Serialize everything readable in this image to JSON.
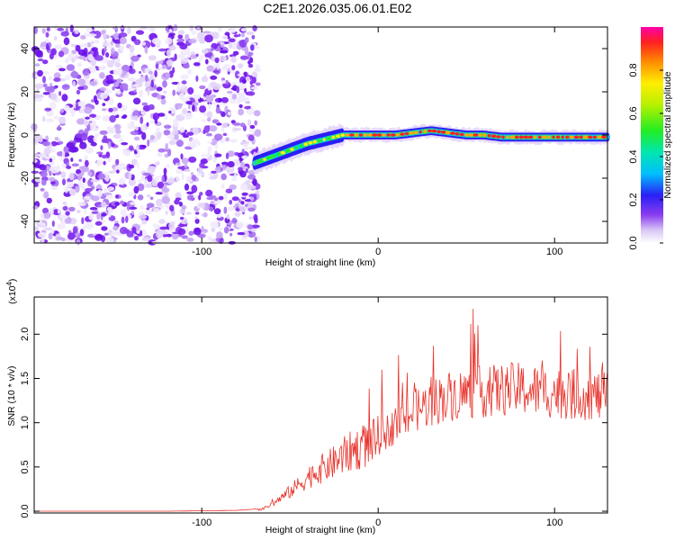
{
  "title": "C2E1.2026.035.06.01.E02",
  "chart_data": [
    {
      "type": "heatmap",
      "xlabel": "Height of straight line (km)",
      "ylabel": "Frequency (Hz)",
      "xlim": [
        -195,
        130
      ],
      "ylim": [
        -50,
        50
      ],
      "xticks": [
        -100,
        0,
        100
      ],
      "yticks": [
        -40,
        -20,
        0,
        20,
        40
      ],
      "noise_region_x": [
        -195,
        -68
      ],
      "ridge": {
        "x": [
          -70,
          -60,
          -50,
          -40,
          -30,
          -20,
          -10,
          0,
          10,
          20,
          30,
          40,
          50,
          60,
          70,
          80,
          90,
          100,
          110,
          120,
          130
        ],
        "freq": [
          -13,
          -10,
          -7,
          -4,
          -2,
          0,
          0,
          0,
          0,
          1,
          2,
          1,
          0,
          0,
          -1,
          -1,
          -1,
          -1,
          -1,
          -1,
          -1
        ]
      },
      "colorbar": {
        "label": "Normalized spectral amplitude",
        "range": [
          0,
          1
        ],
        "ticks": [
          "0.0",
          "0.2",
          "0.4",
          "0.6",
          "0.8"
        ]
      }
    },
    {
      "type": "line",
      "series": [
        {
          "name": "SNR",
          "color": "#e8322a",
          "x": [
            -195,
            -120,
            -80,
            -65,
            -60,
            -55,
            -50,
            -45,
            -40,
            -35,
            -30,
            -25,
            -20,
            -15,
            -10,
            -5,
            0,
            5,
            10,
            15,
            20,
            25,
            30,
            35,
            40,
            45,
            50,
            55,
            60,
            65,
            70,
            75,
            80,
            85,
            90,
            95,
            100,
            105,
            110,
            115,
            120,
            125,
            130
          ],
          "y": [
            0.0,
            0.0,
            0.01,
            0.03,
            0.08,
            0.15,
            0.22,
            0.3,
            0.38,
            0.45,
            0.5,
            0.55,
            0.62,
            0.68,
            0.72,
            0.76,
            0.8,
            0.9,
            0.97,
            1.05,
            1.12,
            1.18,
            1.22,
            1.27,
            1.3,
            1.32,
            1.33,
            1.34,
            1.35,
            1.36,
            1.37,
            1.38,
            1.38,
            1.37,
            1.36,
            1.35,
            1.34,
            1.33,
            1.32,
            1.32,
            1.31,
            1.3,
            1.3
          ]
        }
      ],
      "xlabel": "Height of straight line (km)",
      "ylabel": "SNR (10 * v/v)",
      "scale_label": "(x10",
      "scale_exp": "4",
      "xlim": [
        -195,
        130
      ],
      "ylim": [
        -0.02,
        2.42
      ],
      "xticks": [
        -100,
        0,
        100
      ],
      "yticks": [
        "0.0",
        "0.5",
        "1.0",
        "1.5",
        "2.0"
      ]
    }
  ]
}
